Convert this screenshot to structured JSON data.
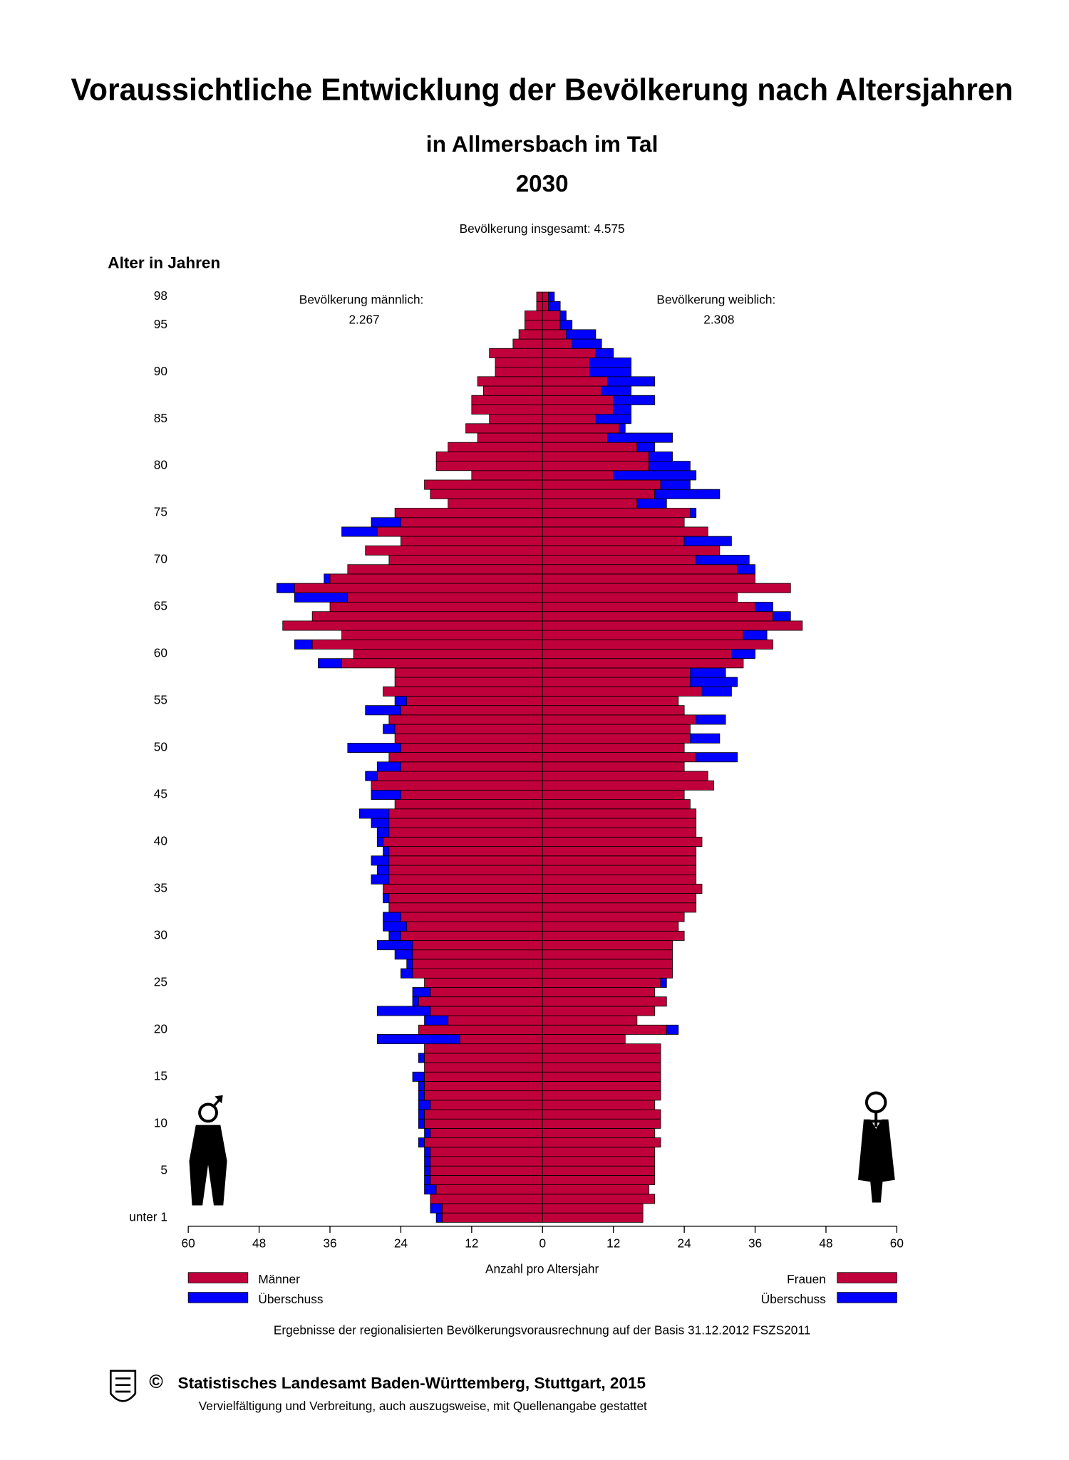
{
  "chart_data": {
    "type": "population-pyramid",
    "title": "Voraussichtliche Entwicklung der Bevölkerung nach Altersjahren",
    "subtitle": "in Allmersbach im Tal",
    "year": "2030",
    "total_label": "Bevölkerung insgesamt: 4.575",
    "y_label": "Alter in Jahren",
    "x_label": "Anzahl pro Altersjahr",
    "male_total_label": "Bevölkerung männlich:",
    "male_total": "2.267",
    "female_total_label": "Bevölkerung weiblich:",
    "female_total": "2.308",
    "note": "Ergebnisse der regionalisierten Bevölkerungsvorausrechnung auf der Basis  31.12.2012 FSZS2011",
    "copyright": "©",
    "publisher": "Statistisches Landesamt Baden-Württemberg,  Stuttgart,  2015",
    "rights": "Vervielfältigung und Verbreitung, auch auszugsweise, mit Quellenangabe gestattet",
    "categories": [
      "unter 1",
      null,
      null,
      null,
      null,
      "5",
      null,
      null,
      null,
      null,
      "10",
      null,
      null,
      null,
      null,
      "15",
      null,
      null,
      null,
      null,
      "20",
      null,
      null,
      null,
      null,
      "25",
      null,
      null,
      null,
      null,
      "30",
      null,
      null,
      null,
      null,
      "35",
      null,
      null,
      null,
      null,
      "40",
      null,
      null,
      null,
      null,
      "45",
      null,
      null,
      null,
      null,
      "50",
      null,
      null,
      null,
      null,
      "55",
      null,
      null,
      null,
      null,
      "60",
      null,
      null,
      null,
      null,
      "65",
      null,
      null,
      null,
      null,
      "70",
      null,
      null,
      null,
      null,
      "75",
      null,
      null,
      null,
      null,
      "80",
      null,
      null,
      null,
      null,
      "85",
      null,
      null,
      null,
      null,
      "90",
      null,
      null,
      null,
      null,
      "95",
      null,
      null,
      "98"
    ],
    "series": [
      {
        "name": "Männer",
        "color": "#c0003a",
        "side": "left",
        "values": [
          18,
          19,
          19,
          20,
          20,
          20,
          20,
          20,
          21,
          20,
          21,
          21,
          21,
          21,
          21,
          22,
          20,
          21,
          20,
          28,
          21,
          20,
          28,
          22,
          22,
          20,
          24,
          23,
          25,
          28,
          26,
          27,
          27,
          26,
          27,
          27,
          29,
          28,
          29,
          27,
          28,
          28,
          29,
          31,
          25,
          29,
          29,
          30,
          28,
          26,
          33,
          25,
          27,
          26,
          30,
          25,
          27,
          25,
          25,
          38,
          32,
          42,
          34,
          44,
          39,
          36,
          42,
          45,
          37,
          33,
          26,
          30,
          24,
          34,
          29,
          25,
          16,
          19,
          20,
          12,
          18,
          18,
          16,
          11,
          13,
          9,
          12,
          12,
          10,
          11,
          8,
          8,
          9,
          5,
          4,
          3,
          3,
          1,
          1
        ]
      },
      {
        "name": "Frauen",
        "color": "#c0003a",
        "side": "right",
        "values": [
          17,
          17,
          19,
          18,
          19,
          19,
          19,
          19,
          20,
          19,
          20,
          20,
          19,
          20,
          20,
          20,
          20,
          20,
          20,
          14,
          23,
          16,
          19,
          21,
          19,
          21,
          22,
          22,
          22,
          22,
          24,
          23,
          24,
          26,
          26,
          27,
          26,
          26,
          26,
          26,
          27,
          26,
          26,
          26,
          25,
          24,
          29,
          28,
          24,
          33,
          24,
          30,
          25,
          31,
          24,
          23,
          32,
          33,
          31,
          34,
          36,
          39,
          38,
          44,
          42,
          39,
          33,
          42,
          36,
          36,
          35,
          30,
          32,
          28,
          24,
          26,
          21,
          30,
          25,
          26,
          25,
          22,
          19,
          22,
          14,
          15,
          15,
          19,
          15,
          19,
          15,
          15,
          12,
          10,
          9,
          5,
          4,
          3,
          2
        ]
      }
    ],
    "surplus": {
      "name": "Überschuss",
      "color": "#0000ff"
    },
    "xlim": [
      -60,
      60
    ],
    "xticks": [
      {
        "value": -60,
        "label": "60"
      },
      {
        "value": -48,
        "label": "48"
      },
      {
        "value": -36,
        "label": "36"
      },
      {
        "value": -24,
        "label": "24"
      },
      {
        "value": -12,
        "label": "12"
      },
      0,
      12,
      24,
      36,
      48,
      60
    ]
  }
}
